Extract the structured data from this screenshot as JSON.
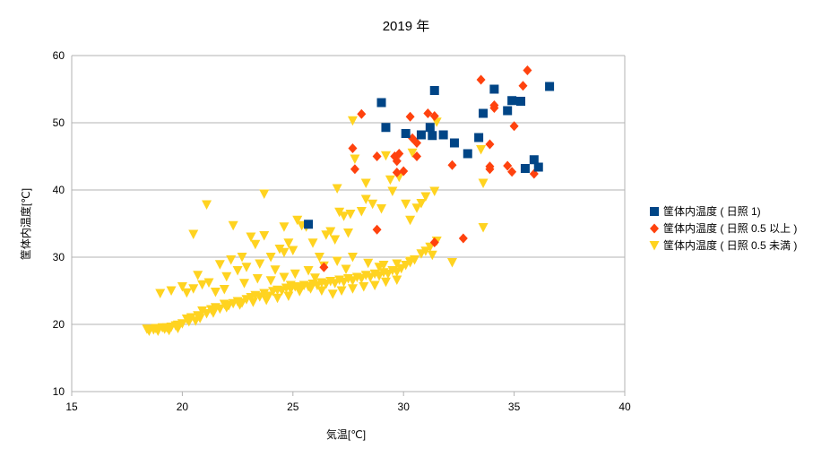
{
  "chart_data": {
    "type": "scatter",
    "title": "2019 年",
    "xlabel": "気温[℃]",
    "ylabel": "筐体内温度[℃]",
    "xlim": [
      15,
      40
    ],
    "ylim": [
      10,
      60
    ],
    "xticks": [
      15,
      20,
      25,
      30,
      35,
      40
    ],
    "yticks": [
      10,
      20,
      30,
      40,
      50,
      60
    ],
    "grid": "horizontal",
    "legend_position": "right",
    "series": [
      {
        "name": "筐体内温度 ( 日照 1)",
        "marker": "square",
        "color": "#004586",
        "points": [
          [
            25.7,
            34.9
          ],
          [
            29.0,
            53.0
          ],
          [
            29.2,
            49.3
          ],
          [
            30.1,
            48.4
          ],
          [
            30.8,
            48.2
          ],
          [
            31.2,
            49.3
          ],
          [
            31.3,
            48.1
          ],
          [
            31.4,
            54.8
          ],
          [
            31.8,
            48.2
          ],
          [
            32.3,
            47.0
          ],
          [
            32.9,
            45.4
          ],
          [
            33.4,
            47.8
          ],
          [
            33.6,
            51.4
          ],
          [
            34.1,
            55.0
          ],
          [
            34.7,
            51.8
          ],
          [
            34.9,
            53.3
          ],
          [
            35.3,
            53.2
          ],
          [
            35.5,
            43.2
          ],
          [
            35.9,
            44.5
          ],
          [
            36.1,
            43.4
          ],
          [
            36.6,
            55.4
          ]
        ]
      },
      {
        "name": "筐体内温度 ( 日照 0.5 以上 )",
        "marker": "diamond",
        "color": "#ff420e",
        "points": [
          [
            26.4,
            28.5
          ],
          [
            27.7,
            46.2
          ],
          [
            27.8,
            43.1
          ],
          [
            28.1,
            51.3
          ],
          [
            28.8,
            34.1
          ],
          [
            28.8,
            45.0
          ],
          [
            29.6,
            45.0
          ],
          [
            29.7,
            42.6
          ],
          [
            29.7,
            44.3
          ],
          [
            29.8,
            45.4
          ],
          [
            30.0,
            42.8
          ],
          [
            30.3,
            50.9
          ],
          [
            30.4,
            47.7
          ],
          [
            30.6,
            47.0
          ],
          [
            30.6,
            45.0
          ],
          [
            31.1,
            51.4
          ],
          [
            31.4,
            51.0
          ],
          [
            31.4,
            32.2
          ],
          [
            32.2,
            43.7
          ],
          [
            32.7,
            32.8
          ],
          [
            33.5,
            56.4
          ],
          [
            33.9,
            43.1
          ],
          [
            33.9,
            43.5
          ],
          [
            33.9,
            46.8
          ],
          [
            34.1,
            52.2
          ],
          [
            34.1,
            52.6
          ],
          [
            34.7,
            43.6
          ],
          [
            34.9,
            42.7
          ],
          [
            35.0,
            49.5
          ],
          [
            35.4,
            55.5
          ],
          [
            35.6,
            57.8
          ],
          [
            35.9,
            42.4
          ]
        ]
      },
      {
        "name": "筐体内温度 ( 日照 0.5 未満 )",
        "marker": "triangle-down",
        "color": "#ffd320",
        "points": [
          [
            18.4,
            19.3
          ],
          [
            18.5,
            19.0
          ],
          [
            18.7,
            19.2
          ],
          [
            18.9,
            19.0
          ],
          [
            19.1,
            19.5
          ],
          [
            19.2,
            19.3
          ],
          [
            19.4,
            19.1
          ],
          [
            19.5,
            19.6
          ],
          [
            19.7,
            19.8
          ],
          [
            19.8,
            19.4
          ],
          [
            20.0,
            20.1
          ],
          [
            20.2,
            20.8
          ],
          [
            20.4,
            21.0
          ],
          [
            20.6,
            20.5
          ],
          [
            20.7,
            21.3
          ],
          [
            20.9,
            22.0
          ],
          [
            21.1,
            21.6
          ],
          [
            21.3,
            22.2
          ],
          [
            21.5,
            22.5
          ],
          [
            21.7,
            22.3
          ],
          [
            21.9,
            23.0
          ],
          [
            22.1,
            22.8
          ],
          [
            22.3,
            23.1
          ],
          [
            22.5,
            23.4
          ],
          [
            22.7,
            23.2
          ],
          [
            22.9,
            23.7
          ],
          [
            23.1,
            24.0
          ],
          [
            23.3,
            24.3
          ],
          [
            23.5,
            24.1
          ],
          [
            23.7,
            24.6
          ],
          [
            23.9,
            24.2
          ],
          [
            24.1,
            24.9
          ],
          [
            24.3,
            25.1
          ],
          [
            24.5,
            25.0
          ],
          [
            24.7,
            25.4
          ],
          [
            24.9,
            25.2
          ],
          [
            25.1,
            25.6
          ],
          [
            25.3,
            25.5
          ],
          [
            25.5,
            25.8
          ],
          [
            25.7,
            25.6
          ],
          [
            25.9,
            26.0
          ],
          [
            26.1,
            25.8
          ],
          [
            26.3,
            26.2
          ],
          [
            26.5,
            26.0
          ],
          [
            26.7,
            26.4
          ],
          [
            26.9,
            26.1
          ],
          [
            27.1,
            26.6
          ],
          [
            27.3,
            26.3
          ],
          [
            27.5,
            26.8
          ],
          [
            27.7,
            26.5
          ],
          [
            27.9,
            27.0
          ],
          [
            28.1,
            26.8
          ],
          [
            28.3,
            27.3
          ],
          [
            28.5,
            27.0
          ],
          [
            28.7,
            27.5
          ],
          [
            28.9,
            27.2
          ],
          [
            29.1,
            27.7
          ],
          [
            29.3,
            27.5
          ],
          [
            29.5,
            28.0
          ],
          [
            29.7,
            27.8
          ],
          [
            29.9,
            28.3
          ],
          [
            30.1,
            28.8
          ],
          [
            30.3,
            29.2
          ],
          [
            30.5,
            29.6
          ],
          [
            30.8,
            30.5
          ],
          [
            31.0,
            30.9
          ],
          [
            31.2,
            31.5
          ],
          [
            31.5,
            32.4
          ],
          [
            31.3,
            30.3
          ],
          [
            32.2,
            29.2
          ],
          [
            19.0,
            24.6
          ],
          [
            19.5,
            25.0
          ],
          [
            20.0,
            25.6
          ],
          [
            20.2,
            24.7
          ],
          [
            20.5,
            25.3
          ],
          [
            20.7,
            27.3
          ],
          [
            20.9,
            25.9
          ],
          [
            21.2,
            26.2
          ],
          [
            21.5,
            24.8
          ],
          [
            21.7,
            28.9
          ],
          [
            22.0,
            27.1
          ],
          [
            22.2,
            29.6
          ],
          [
            22.5,
            28.0
          ],
          [
            22.7,
            30.0
          ],
          [
            22.9,
            28.5
          ],
          [
            23.1,
            33.0
          ],
          [
            23.3,
            31.9
          ],
          [
            23.5,
            29.0
          ],
          [
            23.7,
            33.2
          ],
          [
            24.0,
            30.0
          ],
          [
            24.2,
            28.1
          ],
          [
            24.4,
            31.2
          ],
          [
            24.6,
            30.7
          ],
          [
            24.8,
            32.1
          ],
          [
            25.0,
            31.0
          ],
          [
            25.2,
            35.5
          ],
          [
            25.4,
            34.7
          ],
          [
            25.6,
            34.5
          ],
          [
            25.9,
            32.1
          ],
          [
            26.2,
            30.0
          ],
          [
            26.5,
            33.3
          ],
          [
            26.7,
            33.8
          ],
          [
            26.9,
            32.6
          ],
          [
            27.1,
            36.7
          ],
          [
            27.3,
            36.1
          ],
          [
            27.5,
            33.6
          ],
          [
            27.6,
            36.4
          ],
          [
            27.8,
            44.6
          ],
          [
            28.1,
            36.8
          ],
          [
            28.3,
            38.6
          ],
          [
            28.6,
            37.9
          ],
          [
            29.0,
            37.2
          ],
          [
            29.2,
            45.1
          ],
          [
            29.5,
            39.8
          ],
          [
            29.8,
            41.9
          ],
          [
            30.1,
            37.9
          ],
          [
            30.3,
            35.5
          ],
          [
            30.4,
            45.5
          ],
          [
            30.6,
            37.3
          ],
          [
            30.8,
            38.0
          ],
          [
            31.0,
            39.0
          ],
          [
            31.4,
            39.8
          ],
          [
            31.5,
            50.1
          ],
          [
            27.7,
            50.3
          ],
          [
            21.1,
            37.8
          ],
          [
            23.7,
            39.4
          ],
          [
            20.5,
            33.4
          ],
          [
            33.6,
            41.0
          ],
          [
            33.6,
            34.4
          ],
          [
            33.5,
            46.0
          ],
          [
            29.7,
            26.6
          ],
          [
            29.2,
            26.3
          ],
          [
            28.7,
            25.8
          ],
          [
            28.2,
            25.6
          ],
          [
            27.7,
            25.3
          ],
          [
            27.2,
            25.0
          ],
          [
            26.8,
            24.5
          ],
          [
            26.3,
            25.0
          ],
          [
            25.8,
            25.3
          ],
          [
            25.3,
            24.9
          ],
          [
            24.8,
            24.2
          ],
          [
            24.3,
            23.9
          ],
          [
            23.8,
            23.6
          ],
          [
            23.2,
            23.3
          ],
          [
            22.6,
            22.9
          ],
          [
            22.0,
            22.5
          ],
          [
            21.4,
            21.7
          ],
          [
            20.8,
            20.9
          ],
          [
            20.3,
            20.4
          ],
          [
            19.8,
            19.9
          ],
          [
            19.3,
            19.5
          ],
          [
            18.8,
            19.4
          ],
          [
            24.0,
            26.5
          ],
          [
            24.6,
            27.0
          ],
          [
            25.1,
            27.5
          ],
          [
            25.7,
            28.0
          ],
          [
            26.4,
            28.7
          ],
          [
            27.0,
            29.4
          ],
          [
            27.7,
            30.0
          ],
          [
            28.4,
            29.1
          ],
          [
            29.1,
            28.8
          ],
          [
            29.7,
            29.0
          ],
          [
            30.3,
            29.4
          ],
          [
            22.8,
            26.1
          ],
          [
            23.4,
            26.8
          ],
          [
            21.9,
            25.2
          ],
          [
            24.9,
            25.8
          ],
          [
            26.0,
            26.9
          ],
          [
            27.4,
            28.2
          ],
          [
            28.9,
            28.5
          ],
          [
            22.3,
            34.7
          ],
          [
            24.6,
            34.5
          ],
          [
            27.0,
            40.2
          ],
          [
            28.3,
            41.0
          ],
          [
            29.4,
            41.5
          ]
        ]
      }
    ]
  }
}
